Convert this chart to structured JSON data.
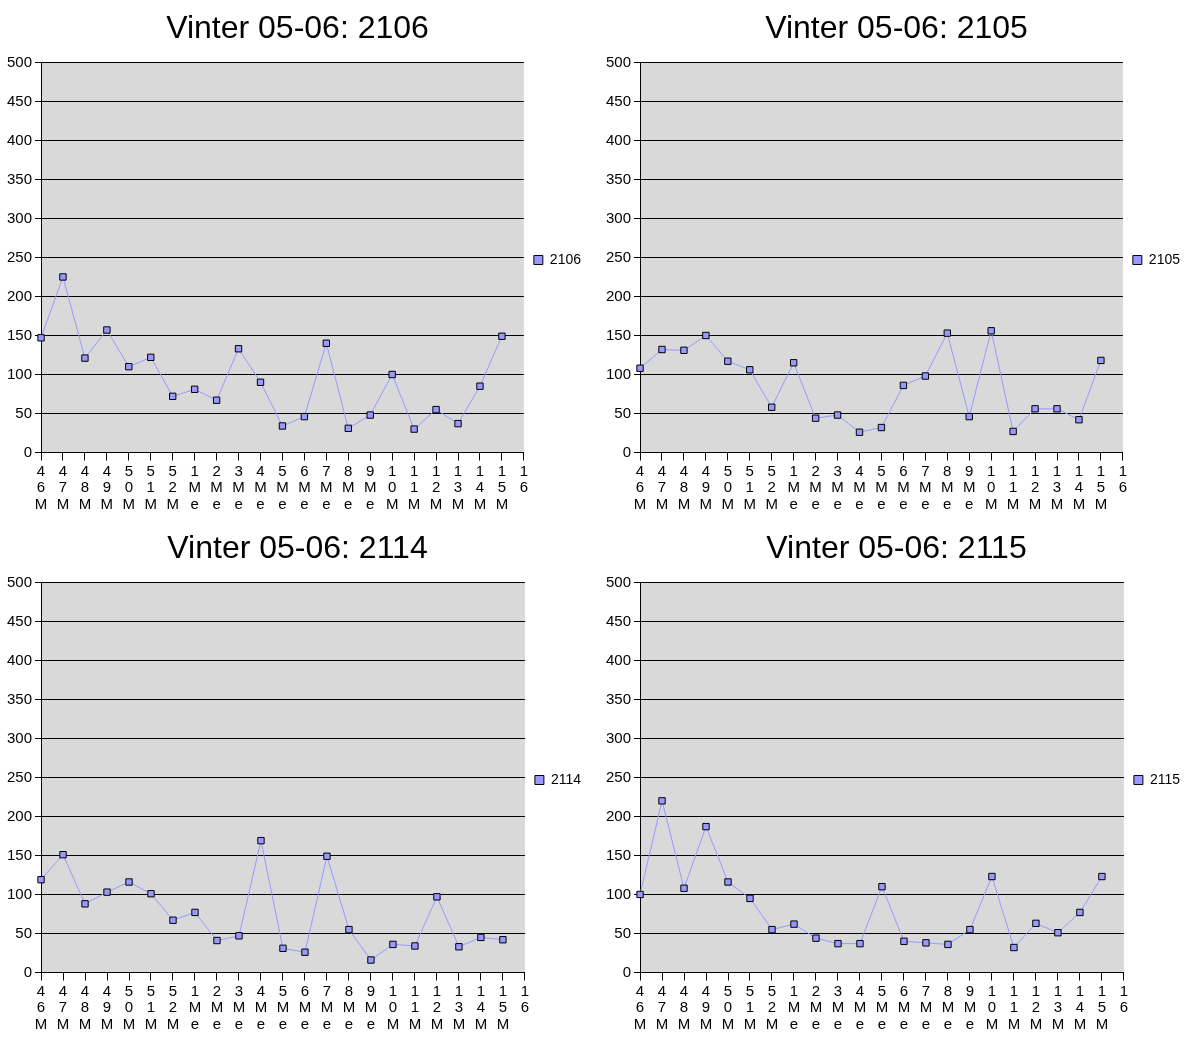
{
  "chart_data": [
    {
      "type": "line",
      "title": "Vinter 05-06: 2106",
      "categories": [
        "46M",
        "47M",
        "48M",
        "49M",
        "50M",
        "51M",
        "52M",
        "1Me",
        "2Me",
        "3Me",
        "4Me",
        "5Me",
        "6Me",
        "7Me",
        "8Me",
        "9Me",
        "10M",
        "11M",
        "12M",
        "13M",
        "14M",
        "15M",
        "16"
      ],
      "series": [
        {
          "name": "2106",
          "color": "#9999ff",
          "values": [
            147,
            225,
            121,
            157,
            110,
            122,
            72,
            81,
            67,
            133,
            90,
            34,
            46,
            140,
            31,
            48,
            100,
            30,
            55,
            37,
            85,
            149,
            null
          ]
        }
      ],
      "ylim": [
        0,
        500
      ],
      "yticks": [
        0,
        50,
        100,
        150,
        200,
        250,
        300,
        350,
        400,
        450,
        500
      ],
      "grid": "y",
      "legend": "right",
      "marker": "square",
      "line_style": "solid"
    },
    {
      "type": "line",
      "title": "Vinter 05-06: 2105",
      "categories": [
        "46M",
        "47M",
        "48M",
        "49M",
        "50M",
        "51M",
        "52M",
        "1Me",
        "2Me",
        "3Me",
        "4Me",
        "5Me",
        "6Me",
        "7Me",
        "8Me",
        "9Me",
        "10M",
        "11M",
        "12M",
        "13M",
        "14M",
        "15M",
        "16"
      ],
      "series": [
        {
          "name": "2105",
          "color": "#9999ff",
          "values": [
            108,
            132,
            131,
            150,
            117,
            106,
            58,
            115,
            44,
            48,
            26,
            32,
            86,
            98,
            153,
            46,
            156,
            27,
            56,
            56,
            42,
            118,
            null
          ]
        }
      ],
      "ylim": [
        0,
        500
      ],
      "yticks": [
        0,
        50,
        100,
        150,
        200,
        250,
        300,
        350,
        400,
        450,
        500
      ],
      "grid": "y",
      "legend": "right",
      "marker": "square",
      "line_style": "solid"
    },
    {
      "type": "line",
      "title": "Vinter 05-06: 2114",
      "categories": [
        "46M",
        "47M",
        "48M",
        "49M",
        "50M",
        "51M",
        "52M",
        "1Me",
        "2Me",
        "3Me",
        "4Me",
        "5Me",
        "6Me",
        "7Me",
        "8Me",
        "9Me",
        "10M",
        "11M",
        "12M",
        "13M",
        "14M",
        "15M",
        "16"
      ],
      "series": [
        {
          "name": "2114",
          "color": "#9999ff",
          "values": [
            119,
            151,
            88,
            103,
            116,
            101,
            67,
            77,
            41,
            47,
            169,
            31,
            26,
            149,
            55,
            16,
            36,
            34,
            97,
            33,
            45,
            42,
            null
          ]
        }
      ],
      "ylim": [
        0,
        500
      ],
      "yticks": [
        0,
        50,
        100,
        150,
        200,
        250,
        300,
        350,
        400,
        450,
        500
      ],
      "grid": "y",
      "legend": "right",
      "marker": "square",
      "line_style": "solid"
    },
    {
      "type": "line",
      "title": "Vinter 05-06: 2115",
      "categories": [
        "46M",
        "47M",
        "48M",
        "49M",
        "50M",
        "51M",
        "52M",
        "1Me",
        "2Me",
        "3Me",
        "4Me",
        "5Me",
        "6Me",
        "7Me",
        "8Me",
        "9Me",
        "10M",
        "11M",
        "12M",
        "13M",
        "14M",
        "15M",
        "16"
      ],
      "series": [
        {
          "name": "2115",
          "color": "#9999ff",
          "values": [
            100,
            220,
            108,
            187,
            116,
            95,
            55,
            62,
            44,
            37,
            37,
            110,
            40,
            38,
            36,
            55,
            123,
            32,
            63,
            51,
            77,
            123,
            null
          ]
        }
      ],
      "ylim": [
        0,
        500
      ],
      "yticks": [
        0,
        50,
        100,
        150,
        200,
        250,
        300,
        350,
        400,
        450,
        500
      ],
      "grid": "y",
      "legend": "right",
      "marker": "square",
      "line_style": "solid"
    }
  ]
}
